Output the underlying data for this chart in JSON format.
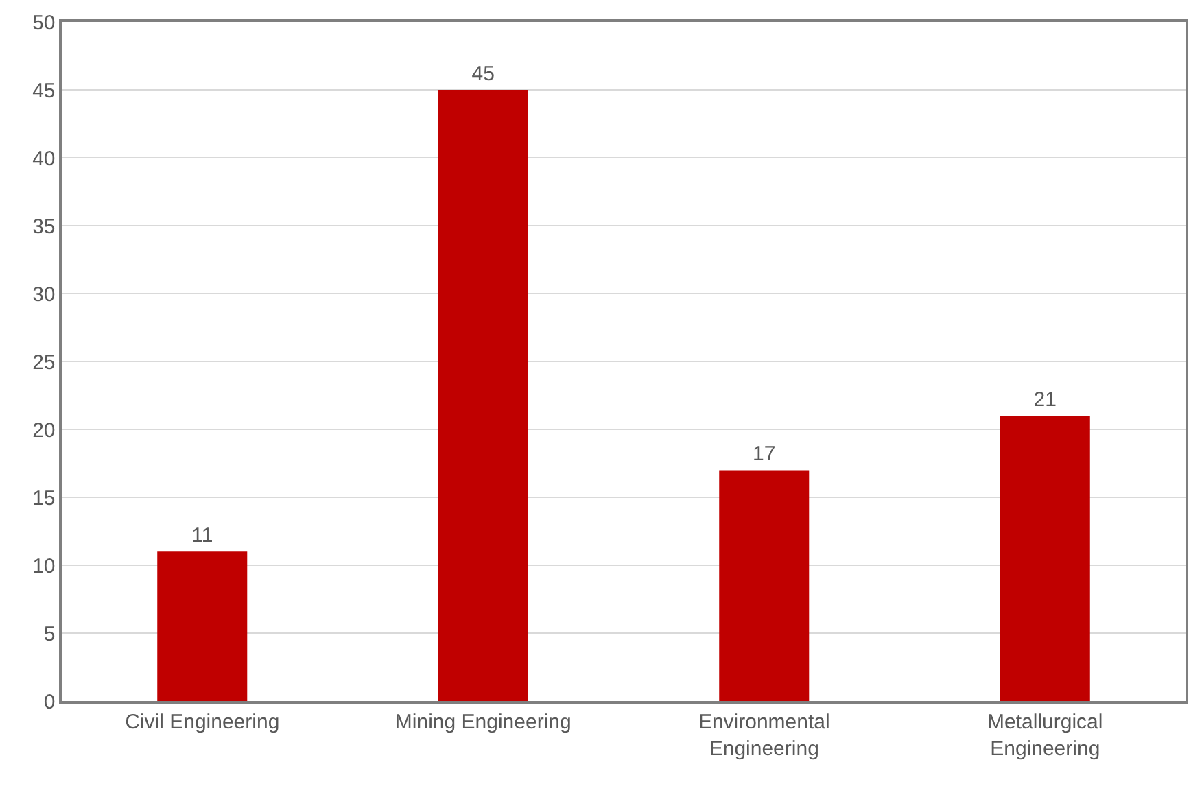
{
  "chart_data": {
    "type": "bar",
    "categories": [
      "Civil Engineering",
      "Mining Engineering",
      "Environmental\nEngineering",
      "Metallurgical\nEngineering"
    ],
    "values": [
      11,
      45,
      17,
      21
    ],
    "color": "#c00000",
    "ylim": [
      0,
      50
    ],
    "yticks": [
      0,
      5,
      10,
      15,
      20,
      25,
      30,
      35,
      40,
      45,
      50
    ],
    "grid": "y",
    "data_labels": true,
    "legend": false
  }
}
